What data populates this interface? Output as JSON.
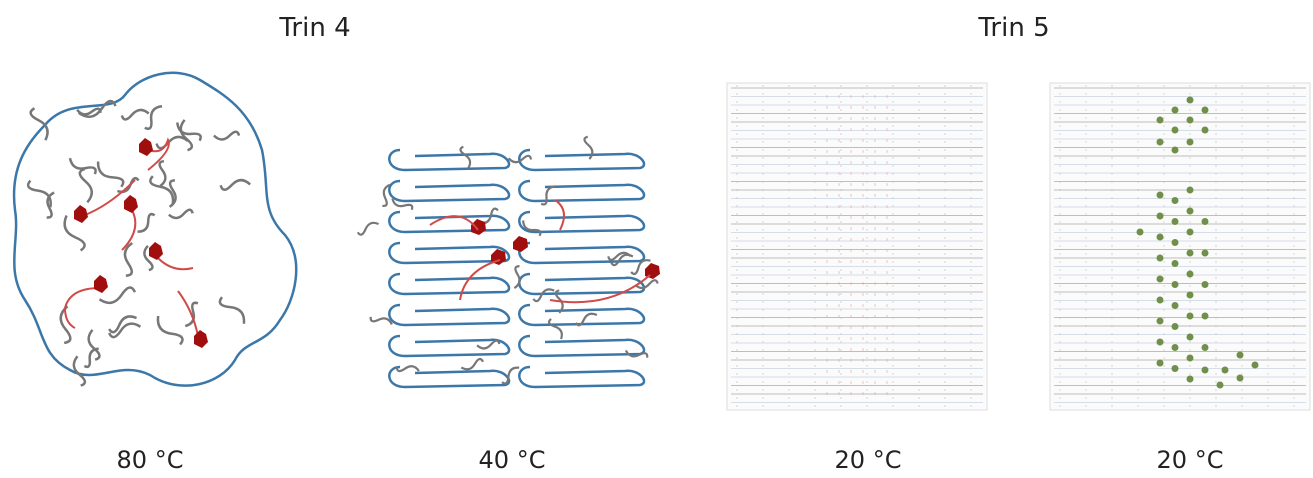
{
  "header": {
    "left_title": "Trin 4",
    "right_title": "Trin 5"
  },
  "panels": [
    {
      "label": "80 °C"
    },
    {
      "label": "40 °C"
    },
    {
      "label": "20 °C"
    },
    {
      "label": "20 °C"
    }
  ]
}
